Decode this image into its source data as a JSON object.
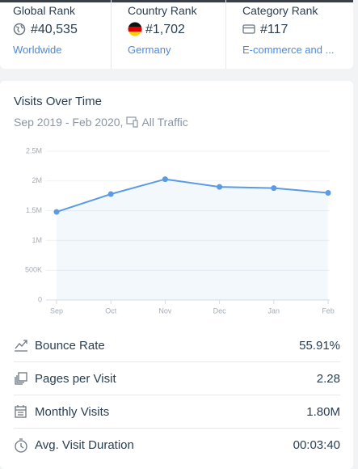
{
  "ranks": [
    {
      "title": "Global Rank",
      "value": "#40,535",
      "link": "Worldwide"
    },
    {
      "title": "Country Rank",
      "value": "#1,702",
      "link": "Germany"
    },
    {
      "title": "Category Rank",
      "value": "#117",
      "link": "E-commerce and ..."
    }
  ],
  "chart_data": {
    "type": "line",
    "title": "Visits Over Time",
    "subtitle": "Sep 2019 - Feb 2020,",
    "traffic": "All Traffic",
    "categories": [
      "Sep",
      "Oct",
      "Nov",
      "Dec",
      "Jan",
      "Feb"
    ],
    "values": [
      1480000,
      1780000,
      2030000,
      1900000,
      1880000,
      1800000
    ],
    "color": "#5b9be6",
    "ylim": [
      0,
      2500000
    ],
    "yticks": [
      0,
      {
        "value": 500000,
        "label": "500K"
      },
      {
        "value": 1000000,
        "label": "1M"
      },
      {
        "value": 1500000,
        "label": "1.5M"
      },
      {
        "value": 2000000,
        "label": "2M"
      },
      {
        "value": 2500000,
        "label": "2.5M"
      }
    ],
    "grid": true
  },
  "metrics": [
    {
      "label": "Bounce Rate",
      "value": "55.91%"
    },
    {
      "label": "Pages per Visit",
      "value": "2.28"
    },
    {
      "label": "Monthly Visits",
      "value": "1.80M"
    },
    {
      "label": "Avg. Visit Duration",
      "value": "00:03:40"
    }
  ]
}
